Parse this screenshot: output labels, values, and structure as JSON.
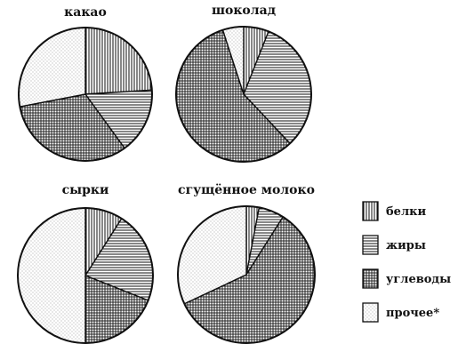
{
  "chart_data": [
    {
      "type": "pie",
      "title": "какао",
      "categories": [
        "белки",
        "жиры",
        "углеводы",
        "прочее*"
      ],
      "values": [
        24,
        16,
        32,
        28
      ]
    },
    {
      "type": "pie",
      "title": "шоколад",
      "categories": [
        "белки",
        "жиры",
        "углеводы",
        "прочее*"
      ],
      "values": [
        6,
        32,
        57,
        5
      ]
    },
    {
      "type": "pie",
      "title": "сырки",
      "categories": [
        "белки",
        "жиры",
        "углеводы",
        "прочее*"
      ],
      "values": [
        9,
        22,
        19,
        50
      ]
    },
    {
      "type": "pie",
      "title": "сгущённое молоко",
      "categories": [
        "белки",
        "жиры",
        "углеводы",
        "прочее*"
      ],
      "values": [
        3,
        6,
        59,
        32
      ]
    }
  ],
  "legend": {
    "items": [
      {
        "label": "белки",
        "pattern": "vertical-lines"
      },
      {
        "label": "жиры",
        "pattern": "horizontal-lines"
      },
      {
        "label": "углеводы",
        "pattern": "crosshatch"
      },
      {
        "label": "прочее*",
        "pattern": "dots"
      }
    ]
  },
  "colors": {
    "stroke": "#111111",
    "background": "#ffffff"
  }
}
